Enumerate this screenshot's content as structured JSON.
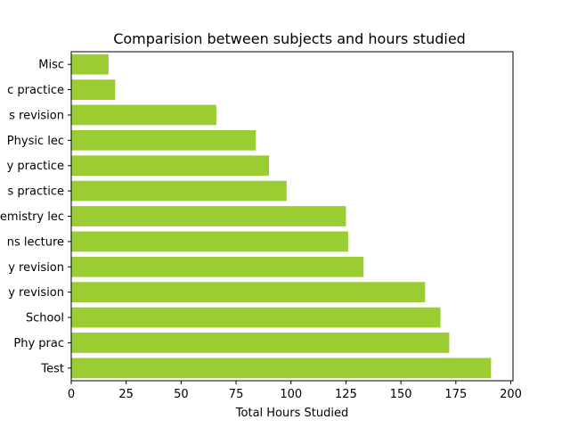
{
  "chart_data": {
    "type": "bar",
    "orientation": "horizontal",
    "title": "Comparision between subjects and hours studied",
    "xlabel": "Total Hours Studied",
    "ylabel": "",
    "categories": [
      "Misc",
      "c practice",
      "s revision",
      "Physic lec",
      "y practice",
      "s practice",
      "emistry lec",
      "ns lecture",
      "y revision",
      "y revision",
      "School",
      "Phy prac",
      "Test"
    ],
    "values": [
      17,
      20,
      66,
      84,
      90,
      98,
      125,
      126,
      133,
      161,
      168,
      172,
      191
    ],
    "xlim": [
      0,
      201
    ],
    "xticks": [
      0,
      25,
      50,
      75,
      100,
      125,
      150,
      175,
      200
    ],
    "bar_color": "#9acd32",
    "grid": false,
    "legend": "none"
  }
}
